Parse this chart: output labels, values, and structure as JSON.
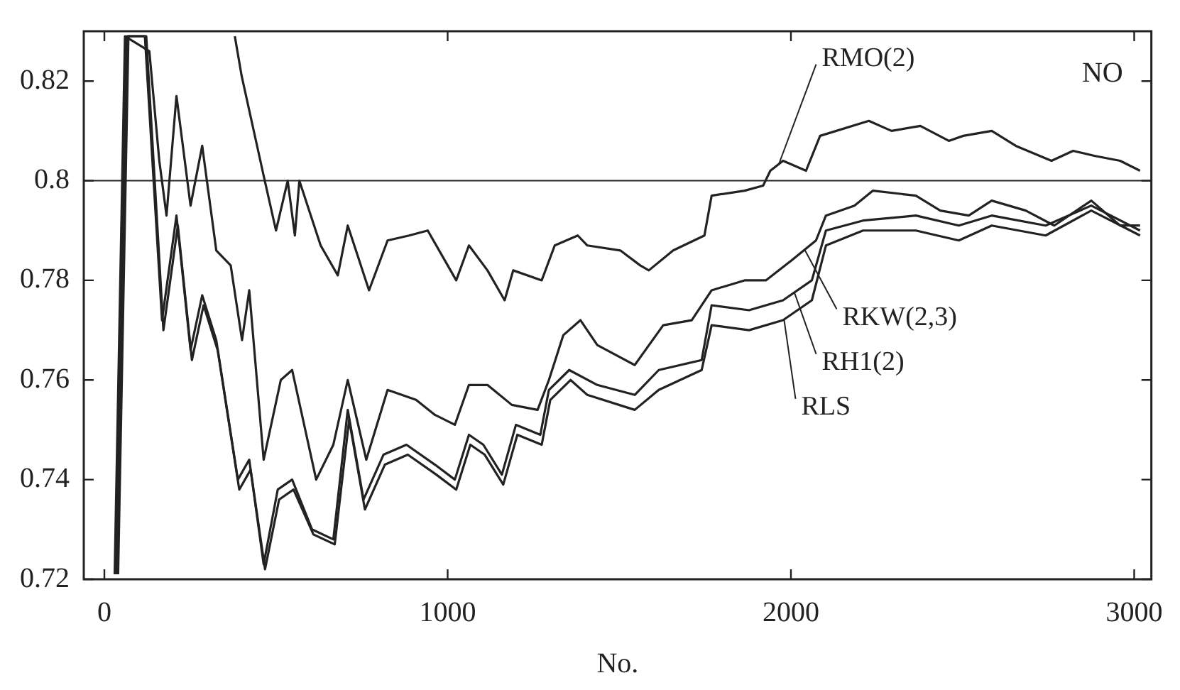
{
  "chart_data": {
    "type": "line",
    "xlabel": "No.",
    "annotations": [
      "NO"
    ],
    "xlim": [
      -60,
      3050
    ],
    "ylim": [
      0.72,
      0.83
    ],
    "xticks": [
      0,
      1000,
      2000,
      3000
    ],
    "yticks": [
      0.72,
      0.74,
      0.76,
      0.78,
      0.8,
      0.82
    ],
    "grid": false,
    "legend": "right",
    "marker": "none",
    "line_style": "solid",
    "ref_lines": [
      {
        "axis": "y",
        "value": 0.8,
        "color": "#222222"
      }
    ],
    "series": [
      {
        "name": "RMO(2)",
        "color": "#222222",
        "x": [
          380,
          400,
          464,
          500,
          534,
          555,
          568,
          630,
          680,
          709,
          771,
          825,
          888,
          942,
          1025,
          1062,
          1116,
          1166,
          1191,
          1274,
          1312,
          1379,
          1407,
          1503,
          1561,
          1586,
          1657,
          1748,
          1769,
          1865,
          1919,
          1940,
          1977,
          2044,
          2085,
          2227,
          2293,
          2377,
          2460,
          2502,
          2585,
          2655,
          2759,
          2822,
          2884,
          2959,
          3017
        ],
        "values": [
          0.829,
          0.821,
          0.801,
          0.79,
          0.8,
          0.789,
          0.8,
          0.787,
          0.781,
          0.791,
          0.778,
          0.788,
          0.789,
          0.79,
          0.78,
          0.787,
          0.782,
          0.776,
          0.782,
          0.78,
          0.787,
          0.789,
          0.787,
          0.786,
          0.783,
          0.782,
          0.786,
          0.789,
          0.797,
          0.798,
          0.799,
          0.802,
          0.804,
          0.802,
          0.809,
          0.812,
          0.81,
          0.811,
          0.808,
          0.809,
          0.81,
          0.807,
          0.804,
          0.806,
          0.805,
          0.804,
          0.802
        ]
      },
      {
        "name": "RKW(2,3)",
        "color": "#222222",
        "x": [
          30,
          60,
          131,
          160,
          181,
          210,
          251,
          285,
          326,
          368,
          401,
          422,
          464,
          514,
          547,
          617,
          667,
          709,
          763,
          825,
          908,
          963,
          1021,
          1062,
          1116,
          1187,
          1262,
          1295,
          1337,
          1387,
          1436,
          1545,
          1628,
          1711,
          1769,
          1865,
          1927,
          2002,
          2073,
          2102,
          2185,
          2239,
          2364,
          2435,
          2518,
          2585,
          2684,
          2767,
          2875,
          2959,
          3017
        ],
        "values": [
          0.721,
          0.829,
          0.826,
          0.804,
          0.793,
          0.817,
          0.795,
          0.807,
          0.786,
          0.783,
          0.768,
          0.778,
          0.744,
          0.76,
          0.762,
          0.74,
          0.747,
          0.76,
          0.744,
          0.758,
          0.756,
          0.753,
          0.751,
          0.759,
          0.759,
          0.755,
          0.754,
          0.76,
          0.769,
          0.772,
          0.767,
          0.763,
          0.771,
          0.772,
          0.778,
          0.78,
          0.78,
          0.784,
          0.788,
          0.793,
          0.795,
          0.798,
          0.797,
          0.794,
          0.793,
          0.796,
          0.794,
          0.791,
          0.796,
          0.791,
          0.791
        ]
      },
      {
        "name": "RH1(2)",
        "color": "#222222",
        "x": [
          35,
          65,
          118,
          168,
          210,
          251,
          285,
          326,
          389,
          422,
          464,
          505,
          547,
          605,
          667,
          709,
          755,
          813,
          880,
          963,
          1021,
          1062,
          1104,
          1158,
          1199,
          1270,
          1295,
          1354,
          1436,
          1545,
          1615,
          1740,
          1769,
          1878,
          1977,
          2061,
          2102,
          2210,
          2364,
          2489,
          2585,
          2742,
          2875,
          3017
        ],
        "values": [
          0.721,
          0.829,
          0.829,
          0.772,
          0.793,
          0.766,
          0.777,
          0.768,
          0.74,
          0.744,
          0.723,
          0.738,
          0.74,
          0.73,
          0.728,
          0.754,
          0.736,
          0.745,
          0.747,
          0.743,
          0.74,
          0.749,
          0.747,
          0.741,
          0.751,
          0.749,
          0.758,
          0.762,
          0.759,
          0.757,
          0.762,
          0.764,
          0.775,
          0.774,
          0.776,
          0.78,
          0.79,
          0.792,
          0.793,
          0.791,
          0.793,
          0.791,
          0.795,
          0.79
        ]
      },
      {
        "name": "RLS",
        "color": "#222222",
        "x": [
          40,
          70,
          122,
          172,
          214,
          255,
          289,
          330,
          393,
          426,
          468,
          509,
          551,
          609,
          671,
          713,
          759,
          817,
          884,
          967,
          1025,
          1066,
          1108,
          1162,
          1203,
          1274,
          1299,
          1358,
          1407,
          1545,
          1615,
          1740,
          1769,
          1878,
          1977,
          2061,
          2102,
          2210,
          2364,
          2489,
          2585,
          2742,
          2875,
          3017
        ],
        "values": [
          0.721,
          0.829,
          0.829,
          0.77,
          0.791,
          0.764,
          0.775,
          0.766,
          0.738,
          0.742,
          0.722,
          0.736,
          0.738,
          0.729,
          0.727,
          0.752,
          0.734,
          0.743,
          0.745,
          0.741,
          0.738,
          0.747,
          0.745,
          0.739,
          0.749,
          0.747,
          0.756,
          0.76,
          0.757,
          0.754,
          0.758,
          0.762,
          0.771,
          0.77,
          0.772,
          0.776,
          0.787,
          0.79,
          0.79,
          0.788,
          0.791,
          0.789,
          0.794,
          0.789
        ]
      }
    ]
  }
}
